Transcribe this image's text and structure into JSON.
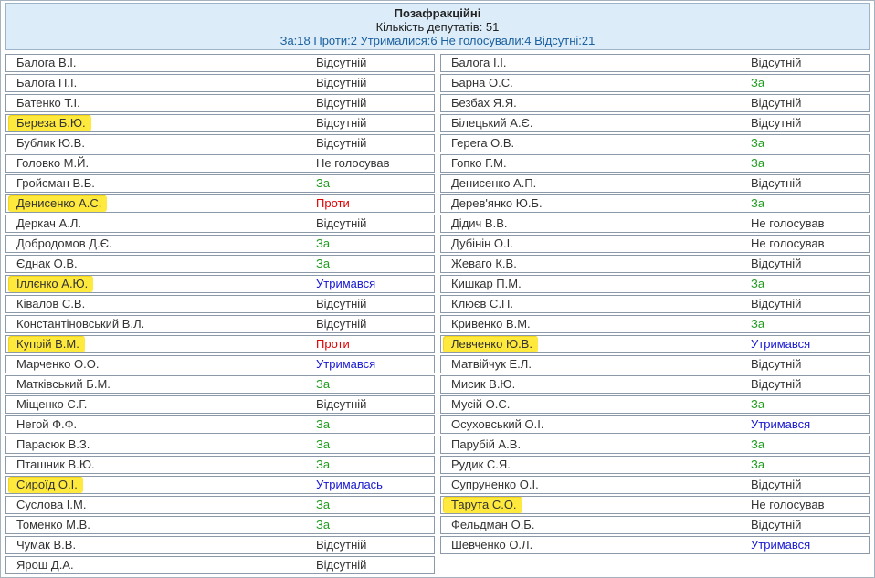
{
  "header": {
    "title": "Позафракційні",
    "deputies_count_label": "Кількість депутатів: 51",
    "vote_summary": "За:18 Проти:2 Утрималися:6 Не голосували:4 Відсутні:21",
    "summary_color": "#1b5f9e",
    "background": "#dcedf9"
  },
  "vote_colors": {
    "За": "#1e9b1e",
    "Проти": "#df0000",
    "Утримався": "#1717d2",
    "Утрималась": "#1717d2",
    "Відсутній": "#333333",
    "Не голосував": "#333333"
  },
  "highlight_color": "#ffe93c",
  "columns": {
    "left": [
      {
        "name": "Балога В.І.",
        "vote": "Відсутній",
        "highlight": false
      },
      {
        "name": "Балога П.І.",
        "vote": "Відсутній",
        "highlight": false
      },
      {
        "name": "Батенко Т.І.",
        "vote": "Відсутній",
        "highlight": false
      },
      {
        "name": "Береза Б.Ю.",
        "vote": "Відсутній",
        "highlight": true
      },
      {
        "name": "Бублик Ю.В.",
        "vote": "Відсутній",
        "highlight": false
      },
      {
        "name": "Головко М.Й.",
        "vote": "Не голосував",
        "highlight": false
      },
      {
        "name": "Гройсман В.Б.",
        "vote": "За",
        "highlight": false
      },
      {
        "name": "Денисенко А.С.",
        "vote": "Проти",
        "highlight": true
      },
      {
        "name": "Деркач А.Л.",
        "vote": "Відсутній",
        "highlight": false
      },
      {
        "name": "Добродомов Д.Є.",
        "vote": "За",
        "highlight": false
      },
      {
        "name": "Єднак О.В.",
        "vote": "За",
        "highlight": false
      },
      {
        "name": "Іллєнко А.Ю.",
        "vote": "Утримався",
        "highlight": true
      },
      {
        "name": "Ківалов С.В.",
        "vote": "Відсутній",
        "highlight": false
      },
      {
        "name": "Константіновський В.Л.",
        "vote": "Відсутній",
        "highlight": false
      },
      {
        "name": "Купрій В.М.",
        "vote": "Проти",
        "highlight": true
      },
      {
        "name": "Марченко О.О.",
        "vote": "Утримався",
        "highlight": false
      },
      {
        "name": "Матківський Б.М.",
        "vote": "За",
        "highlight": false
      },
      {
        "name": "Міщенко С.Г.",
        "vote": "Відсутній",
        "highlight": false
      },
      {
        "name": "Негой Ф.Ф.",
        "vote": "За",
        "highlight": false
      },
      {
        "name": "Парасюк В.З.",
        "vote": "За",
        "highlight": false
      },
      {
        "name": "Пташник В.Ю.",
        "vote": "За",
        "highlight": false
      },
      {
        "name": "Сироїд О.І.",
        "vote": "Утрималась",
        "highlight": true
      },
      {
        "name": "Суслова І.М.",
        "vote": "За",
        "highlight": false
      },
      {
        "name": "Томенко М.В.",
        "vote": "За",
        "highlight": false
      },
      {
        "name": "Чумак В.В.",
        "vote": "Відсутній",
        "highlight": false
      },
      {
        "name": "Ярош Д.А.",
        "vote": "Відсутній",
        "highlight": false
      }
    ],
    "right": [
      {
        "name": "Балога І.І.",
        "vote": "Відсутній",
        "highlight": false
      },
      {
        "name": "Барна О.С.",
        "vote": "За",
        "highlight": false
      },
      {
        "name": "Безбах Я.Я.",
        "vote": "Відсутній",
        "highlight": false
      },
      {
        "name": "Білецький А.Є.",
        "vote": "Відсутній",
        "highlight": false
      },
      {
        "name": "Герега О.В.",
        "vote": "За",
        "highlight": false
      },
      {
        "name": "Гопко Г.М.",
        "vote": "За",
        "highlight": false
      },
      {
        "name": "Денисенко А.П.",
        "vote": "Відсутній",
        "highlight": false
      },
      {
        "name": "Дерев'янко Ю.Б.",
        "vote": "За",
        "highlight": false
      },
      {
        "name": "Дідич В.В.",
        "vote": "Не голосував",
        "highlight": false
      },
      {
        "name": "Дубінін О.І.",
        "vote": "Не голосував",
        "highlight": false
      },
      {
        "name": "Жеваго К.В.",
        "vote": "Відсутній",
        "highlight": false
      },
      {
        "name": "Кишкар П.М.",
        "vote": "За",
        "highlight": false
      },
      {
        "name": "Клюєв С.П.",
        "vote": "Відсутній",
        "highlight": false
      },
      {
        "name": "Кривенко В.М.",
        "vote": "За",
        "highlight": false
      },
      {
        "name": "Левченко Ю.В.",
        "vote": "Утримався",
        "highlight": true
      },
      {
        "name": "Матвійчук Е.Л.",
        "vote": "Відсутній",
        "highlight": false
      },
      {
        "name": "Мисик В.Ю.",
        "vote": "Відсутній",
        "highlight": false
      },
      {
        "name": "Мусій О.С.",
        "vote": "За",
        "highlight": false
      },
      {
        "name": "Осуховський О.І.",
        "vote": "Утримався",
        "highlight": false
      },
      {
        "name": "Парубій А.В.",
        "vote": "За",
        "highlight": false
      },
      {
        "name": "Рудик С.Я.",
        "vote": "За",
        "highlight": false
      },
      {
        "name": "Супруненко О.І.",
        "vote": "Відсутній",
        "highlight": false
      },
      {
        "name": "Тарута С.О.",
        "vote": "Не голосував",
        "highlight": true
      },
      {
        "name": "Фельдман О.Б.",
        "vote": "Відсутній",
        "highlight": false
      },
      {
        "name": "Шевченко О.Л.",
        "vote": "Утримався",
        "highlight": false
      }
    ]
  }
}
